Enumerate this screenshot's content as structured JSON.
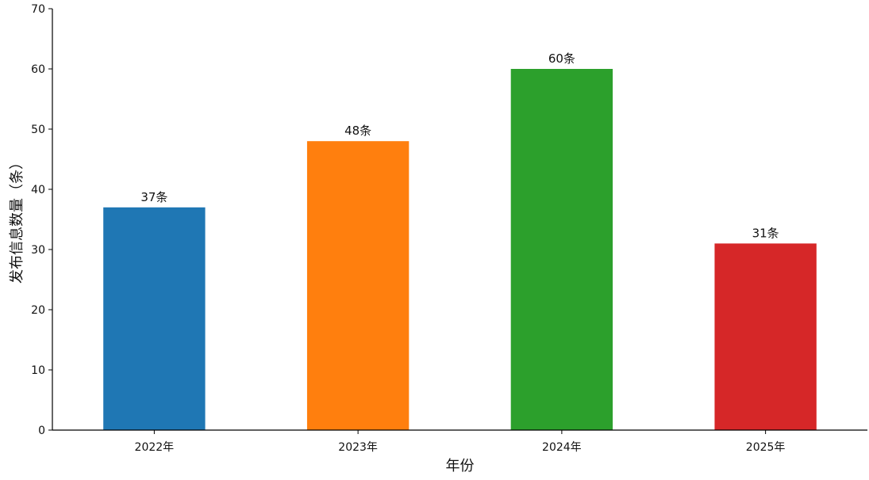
{
  "chart_data": {
    "type": "bar",
    "categories": [
      "2022年",
      "2023年",
      "2024年",
      "2025年"
    ],
    "values": [
      37,
      48,
      60,
      31
    ],
    "data_labels": [
      "37条",
      "48条",
      "60条",
      "31条"
    ],
    "colors": [
      "#1f77b4",
      "#ff7f0e",
      "#2ca02c",
      "#d62728"
    ],
    "title": "",
    "xlabel": "年份",
    "ylabel": "发布信息数量（条）",
    "ylim": [
      0,
      70
    ],
    "yticks": [
      0,
      10,
      20,
      30,
      40,
      50,
      60,
      70
    ],
    "grid": false,
    "legend": "none"
  }
}
